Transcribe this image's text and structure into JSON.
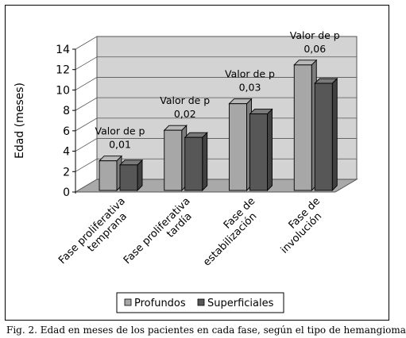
{
  "chart_data": {
    "type": "bar",
    "style": "3d-clustered",
    "categories": [
      [
        "Fase proliferativa",
        "temprana"
      ],
      [
        "Fase proliferativa",
        "tardía"
      ],
      [
        "Fase de",
        "estabilización"
      ],
      [
        "Fase de",
        "involución"
      ]
    ],
    "series": [
      {
        "name": "Profundos",
        "values": [
          2.9,
          5.9,
          8.5,
          12.3
        ],
        "color": "#a7a7a7"
      },
      {
        "name": "Superficiales",
        "values": [
          2.5,
          5.2,
          7.5,
          10.5
        ],
        "color": "#575757"
      }
    ],
    "annotations": [
      [
        "Valor de p",
        "0,01"
      ],
      [
        "Valor de p",
        "0,02"
      ],
      [
        "Valor de p",
        "0,03"
      ],
      [
        "Valor de p",
        "0,06"
      ]
    ],
    "ylabel": "Edad (meses)",
    "ylim": [
      0,
      14
    ],
    "yticks": [
      0,
      2,
      4,
      6,
      8,
      10,
      12,
      14
    ],
    "grid": true,
    "legend": "bottom",
    "colors": {
      "wall": "#d3d3d3",
      "floor": "#a9a9a9",
      "grid": "#555555"
    }
  },
  "caption": "Fig. 2. Edad en meses de los pacientes en cada fase, según el tipo de hemangioma"
}
